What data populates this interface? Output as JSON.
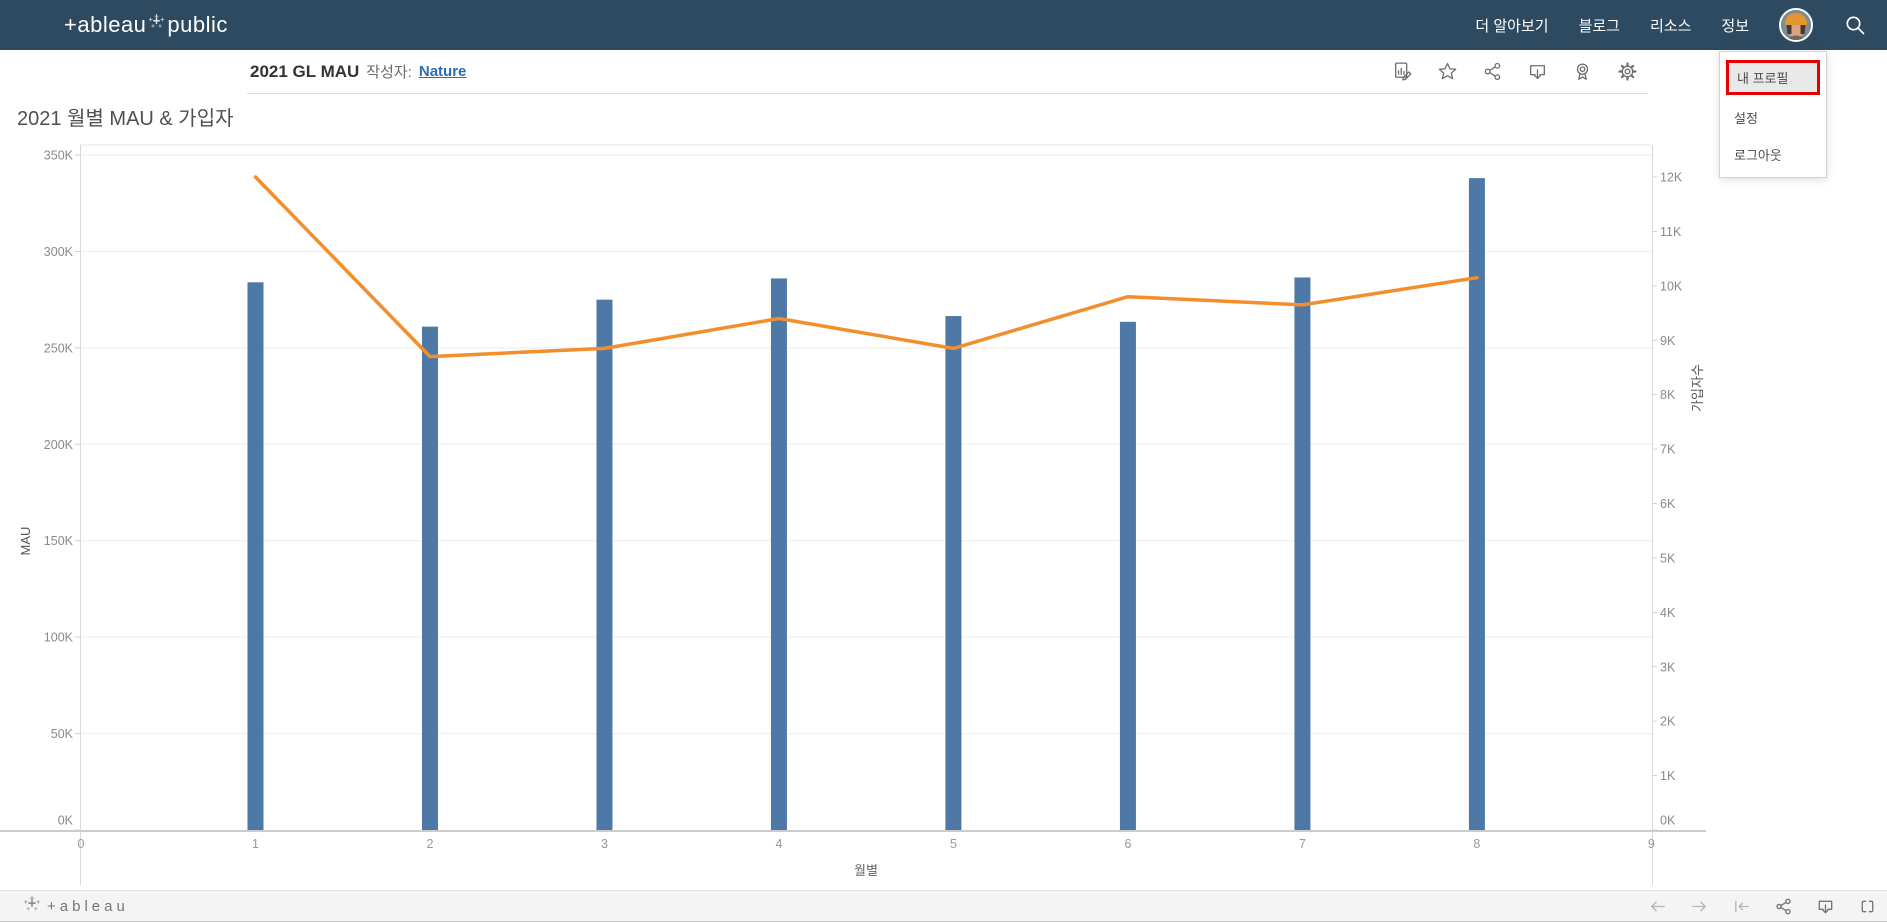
{
  "navbar": {
    "bg_color": "#2e4a60",
    "logo_part1": "+ableau",
    "logo_part2": "public",
    "logo_icon": "tableau-sparkle-icon",
    "items": [
      {
        "label": "더 알아보기"
      },
      {
        "label": "블로그"
      },
      {
        "label": "리소스"
      },
      {
        "label": "정보"
      }
    ],
    "avatar_icon": "user-avatar",
    "search_icon": "search-icon"
  },
  "viz_header": {
    "title": "2021 GL MAU",
    "byline_label": "작성자:",
    "author_link": "Nature",
    "toolbar_icons": [
      "edit-icon",
      "favorite-star-icon",
      "share-icon",
      "download-icon",
      "award-ribbon-icon",
      "settings-gear-icon"
    ]
  },
  "profile_menu": {
    "highlight_border_color": "#e60000",
    "highlight_bg_color": "#e9e9e9",
    "items": [
      {
        "label": "내 프로필",
        "highlighted": true
      },
      {
        "label": "설정",
        "highlighted": false
      },
      {
        "label": "로그아웃",
        "highlighted": false
      }
    ]
  },
  "chart_data": {
    "type": "bar+line dual-axis combo",
    "title": "2021 월별 MAU & 가입자",
    "xlabel": "월별",
    "x_ticks": [
      0,
      1,
      2,
      3,
      4,
      5,
      6,
      7,
      8,
      9
    ],
    "x": [
      1,
      2,
      3,
      4,
      5,
      6,
      7,
      8
    ],
    "series": [
      {
        "name": "MAU",
        "chart": "bar",
        "axis": "left",
        "color": "#4e79a7",
        "values": [
          284000,
          261000,
          275000,
          286000,
          266500,
          263500,
          286500,
          338000
        ]
      },
      {
        "name": "가입자수",
        "chart": "line",
        "axis": "right",
        "color": "#f28e2b",
        "values": [
          12000,
          8700,
          8850,
          9400,
          8850,
          9800,
          9650,
          10150
        ]
      }
    ],
    "left_axis": {
      "label": "MAU",
      "range": [
        0,
        350000
      ],
      "tick_values": [
        0,
        50000,
        100000,
        150000,
        200000,
        250000,
        300000,
        350000
      ],
      "tick_labels": [
        "0K",
        "50K",
        "100K",
        "150K",
        "200K",
        "250K",
        "300K",
        "350K"
      ]
    },
    "right_axis": {
      "label": "가입자수",
      "range": [
        0,
        12000
      ],
      "tick_values": [
        0,
        1000,
        2000,
        3000,
        4000,
        5000,
        6000,
        7000,
        8000,
        9000,
        10000,
        11000,
        12000
      ],
      "tick_labels": [
        "0K",
        "1K",
        "2K",
        "3K",
        "4K",
        "5K",
        "6K",
        "7K",
        "8K",
        "9K",
        "10K",
        "11K",
        "12K"
      ]
    },
    "grid": true,
    "legend": "none"
  },
  "footer": {
    "logo_text": "+ableau",
    "logo_icon": "tableau-sparkle-icon",
    "icons": [
      "undo-arrow-left-icon",
      "redo-arrow-right-icon",
      "reset-icon",
      "share-icon",
      "download-icon",
      "fullscreen-icon"
    ]
  }
}
